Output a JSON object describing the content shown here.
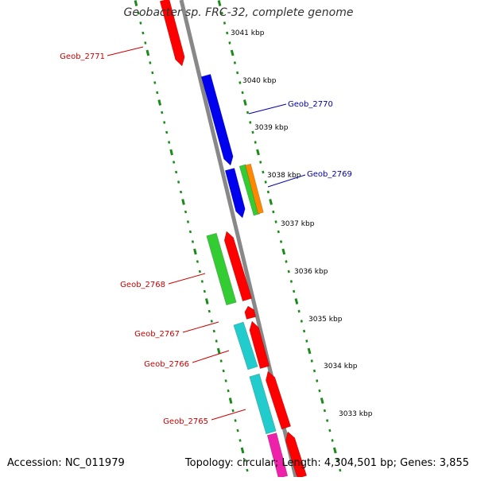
{
  "title": "Geobacter sp. FRC-32, complete genome",
  "footer": {
    "accession": "Accession: NC_011979",
    "summary": "Topology: circular; Length: 4,304,501 bp; Genes: 3,855"
  },
  "ticks": [
    "3041 kbp",
    "3040 kbp",
    "3039 kbp",
    "3038 kbp",
    "3037 kbp",
    "3036 kbp",
    "3035 kbp",
    "3034 kbp",
    "3033 kbp"
  ],
  "genes": [
    {
      "label": "Geob_2771",
      "color": "#cc0000"
    },
    {
      "label": "Geob_2770",
      "color": "#0000aa"
    },
    {
      "label": "Geob_2769",
      "color": "#0000aa"
    },
    {
      "label": "Geob_2768",
      "color": "#cc0000"
    },
    {
      "label": "Geob_2767",
      "color": "#cc0000"
    },
    {
      "label": "Geob_2766",
      "color": "#cc0000"
    },
    {
      "label": "Geob_2765",
      "color": "#cc0000"
    }
  ],
  "colors": {
    "backbone": "#888888",
    "tick": "#1a8a1a",
    "red": "#ff0000",
    "blue": "#0000ee",
    "green": "#33cc33",
    "orange": "#ff8800",
    "cyan": "#22cccc",
    "magenta": "#ee22aa"
  }
}
